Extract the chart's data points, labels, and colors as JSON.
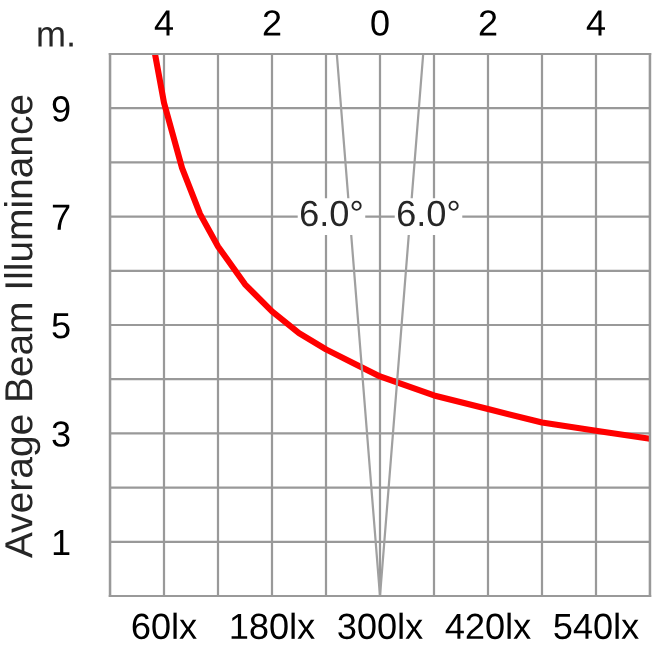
{
  "chart_data": {
    "type": "line",
    "ylabel": "Average Beam Illuminance",
    "x2label": "m.",
    "xlim": [
      0,
      600
    ],
    "xticks": [
      {
        "value": 0,
        "label": null
      },
      {
        "value": 60,
        "label": "60lx"
      },
      {
        "value": 120,
        "label": null
      },
      {
        "value": 180,
        "label": "180lx"
      },
      {
        "value": 240,
        "label": null
      },
      {
        "value": 300,
        "label": "300lx"
      },
      {
        "value": 360,
        "label": null
      },
      {
        "value": 420,
        "label": "420lx"
      },
      {
        "value": 480,
        "label": null
      },
      {
        "value": 540,
        "label": "540lx"
      },
      {
        "value": 600,
        "label": null
      }
    ],
    "x2lim": [
      -5,
      5
    ],
    "x2ticks": [
      {
        "value": -4,
        "label": "4"
      },
      {
        "value": -2,
        "label": "2"
      },
      0,
      2,
      4
    ],
    "ylim": [
      0,
      10
    ],
    "yticks": [
      {
        "value": 0,
        "label": null
      },
      1,
      {
        "value": 2,
        "label": null
      },
      3,
      {
        "value": 4,
        "label": null
      },
      5,
      {
        "value": 6,
        "label": null
      },
      7,
      {
        "value": 8,
        "label": null
      },
      9,
      {
        "value": 10,
        "label": null
      }
    ],
    "grid": true,
    "legend": false,
    "series": [
      {
        "color": "#ff0000",
        "x": [
          50,
          60,
          80,
          100,
          120,
          150,
          180,
          210,
          240,
          270,
          300,
          360,
          420,
          480,
          540,
          600
        ],
        "values": [
          10.0,
          9.1,
          7.9,
          7.05,
          6.45,
          5.75,
          5.25,
          4.85,
          4.55,
          4.3,
          4.05,
          3.7,
          3.45,
          3.2,
          3.05,
          2.9
        ]
      },
      {
        "color": "#a0a0a0",
        "axis": "x2",
        "x": [
          0,
          -0.8
        ],
        "values": [
          0,
          10
        ]
      },
      {
        "color": "#a0a0a0",
        "axis": "x2",
        "x": [
          0,
          0.8
        ],
        "values": [
          0,
          10
        ]
      }
    ],
    "annotations": [
      "6.0°",
      "6.0°"
    ]
  }
}
